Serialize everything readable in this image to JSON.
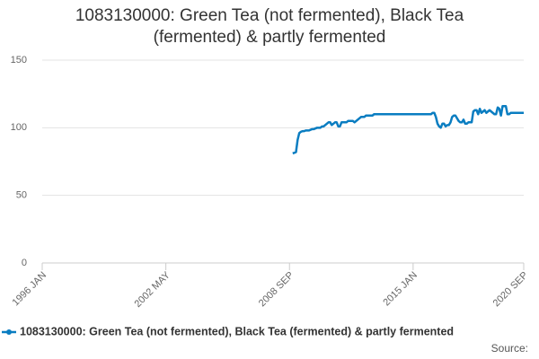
{
  "chart_data": {
    "type": "line",
    "title": "1083130000: Green Tea (not fermented), Black Tea (fermented) & partly fermented",
    "source": "Source:",
    "categories": [
      "1996 JAN",
      null,
      null,
      null,
      null,
      null,
      null,
      null,
      null,
      null,
      null,
      null,
      null,
      null,
      null,
      null,
      null,
      null,
      null,
      null,
      null,
      null,
      null,
      null,
      null,
      null,
      null,
      null,
      null,
      null,
      null,
      null,
      null,
      null,
      null,
      null,
      null,
      null,
      null,
      null,
      null,
      null,
      null,
      null,
      null,
      null,
      null,
      null,
      null,
      null,
      null,
      null,
      null,
      null,
      null,
      null,
      null,
      null,
      null,
      null,
      null,
      null,
      null,
      null,
      null,
      null,
      null,
      null,
      null,
      null,
      null,
      null,
      null,
      null,
      null,
      null,
      "2002 MAY",
      null,
      null,
      null,
      null,
      null,
      null,
      null,
      null,
      null,
      null,
      null,
      null,
      null,
      null,
      null,
      null,
      null,
      null,
      null,
      null,
      null,
      null,
      null,
      null,
      null,
      null,
      null,
      null,
      null,
      null,
      null,
      null,
      null,
      null,
      null,
      null,
      null,
      null,
      null,
      null,
      null,
      null,
      null,
      null,
      null,
      null,
      null,
      null,
      null,
      null,
      null,
      null,
      null,
      null,
      null,
      null,
      null,
      null,
      null,
      null,
      null,
      null,
      null,
      null,
      null,
      null,
      null,
      null,
      null,
      null,
      null,
      null,
      null,
      null,
      null,
      "2008 SEP",
      null,
      null,
      null,
      null,
      null,
      null,
      null,
      null,
      null,
      null,
      null,
      null,
      null,
      null,
      null,
      null,
      null,
      null,
      null,
      null,
      null,
      null,
      null,
      null,
      null,
      null,
      null,
      null,
      null,
      null,
      null,
      null,
      null,
      null,
      null,
      null,
      null,
      null,
      null,
      null,
      null,
      null,
      null,
      null,
      null,
      null,
      null,
      null,
      null,
      null,
      null,
      null,
      null,
      null,
      null,
      null,
      null,
      null,
      null,
      null,
      null,
      null,
      null,
      null,
      null,
      null,
      null,
      null,
      null,
      null,
      null,
      null,
      null,
      null,
      null,
      "2015 JAN",
      null,
      null,
      null,
      null,
      null,
      null,
      null,
      null,
      null,
      null,
      null,
      null,
      null,
      null,
      null,
      null,
      null,
      null,
      null,
      null,
      null,
      null,
      null,
      null,
      null,
      null,
      null,
      null,
      null,
      null,
      null,
      null,
      null,
      null,
      null,
      null,
      null,
      null,
      null,
      null,
      null,
      null,
      null,
      null,
      null,
      null,
      null,
      null,
      null,
      null,
      null,
      null,
      null,
      null,
      null,
      null,
      null,
      null,
      null,
      null,
      null,
      null,
      null,
      null,
      null,
      null,
      null,
      "2020 SEP"
    ],
    "series": [
      {
        "name": "1083130000: Green Tea (not fermented), Black Tea (fermented) & partly fermented",
        "color": "#0a7dc1",
        "values": [
          null,
          null,
          null,
          null,
          null,
          null,
          null,
          null,
          null,
          null,
          null,
          null,
          null,
          null,
          null,
          null,
          null,
          null,
          null,
          null,
          null,
          null,
          null,
          null,
          null,
          null,
          null,
          null,
          null,
          null,
          null,
          null,
          null,
          null,
          null,
          null,
          null,
          null,
          null,
          null,
          null,
          null,
          null,
          null,
          null,
          null,
          null,
          null,
          null,
          null,
          null,
          null,
          null,
          null,
          null,
          null,
          null,
          null,
          null,
          null,
          null,
          null,
          null,
          null,
          null,
          null,
          null,
          null,
          null,
          null,
          null,
          null,
          null,
          null,
          null,
          null,
          null,
          null,
          null,
          null,
          null,
          null,
          null,
          null,
          null,
          null,
          null,
          null,
          null,
          null,
          null,
          null,
          null,
          null,
          null,
          null,
          null,
          null,
          null,
          null,
          null,
          null,
          null,
          null,
          null,
          null,
          null,
          null,
          null,
          null,
          null,
          null,
          null,
          null,
          null,
          null,
          null,
          null,
          null,
          null,
          null,
          null,
          null,
          null,
          null,
          null,
          null,
          null,
          null,
          null,
          null,
          null,
          null,
          null,
          null,
          null,
          null,
          null,
          null,
          null,
          null,
          null,
          null,
          null,
          null,
          null,
          null,
          null,
          null,
          null,
          null,
          null,
          null,
          null,
          81,
          81.5,
          82,
          91,
          96,
          97,
          97.5,
          97.5,
          98,
          98,
          98,
          98.5,
          99,
          99,
          99.5,
          100,
          100,
          100,
          101,
          101,
          102,
          103,
          104,
          104,
          102,
          103,
          104,
          104,
          101,
          101,
          104,
          104,
          104,
          104,
          105,
          105,
          105,
          105,
          104,
          105,
          106,
          107,
          108,
          108,
          108,
          109,
          109,
          109,
          109,
          109,
          110,
          110,
          110,
          110,
          110,
          110,
          110,
          110,
          110,
          110,
          110,
          110,
          110,
          110,
          110,
          110,
          110,
          110,
          110,
          110,
          110,
          110,
          110,
          110,
          110,
          110,
          110,
          110,
          110,
          110,
          110,
          110,
          110,
          110,
          110,
          110,
          111,
          111,
          108,
          103,
          101,
          100,
          103,
          103,
          101,
          102,
          102,
          104,
          108,
          109,
          109,
          107,
          105,
          104,
          104,
          106,
          103,
          103,
          104,
          104,
          104,
          112,
          113,
          113,
          110,
          114,
          111,
          112,
          113,
          111,
          112,
          113,
          112,
          111,
          110,
          110,
          115,
          114,
          109,
          116,
          116,
          116,
          110,
          110,
          111,
          111,
          111,
          111,
          111,
          111,
          111,
          111,
          111
        ]
      }
    ],
    "ylim": [
      0,
      150
    ],
    "yticks": [
      0,
      50,
      100,
      150
    ],
    "grid": true,
    "legend": "bottom"
  }
}
